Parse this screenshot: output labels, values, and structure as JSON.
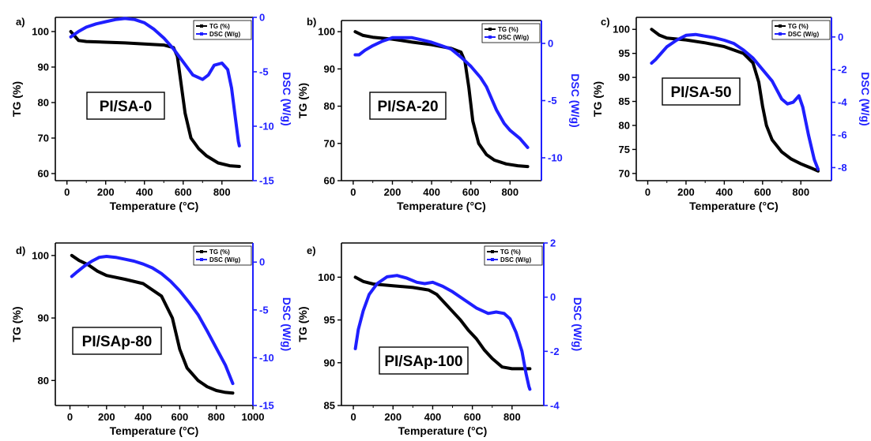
{
  "chart_data": [
    {
      "type": "line",
      "panel": "a)",
      "label": "PI/SA-0",
      "xlabel": "Temperature (°C)",
      "ylabel_left": "TG (%)",
      "ylabel_right": "DSC (W/g)",
      "xlim": [
        -60,
        960
      ],
      "ylim_left": [
        58,
        104
      ],
      "ylim_right": [
        -15,
        0
      ],
      "xticks": [
        0,
        200,
        400,
        600,
        800
      ],
      "yticks_left": [
        60,
        70,
        80,
        90,
        100
      ],
      "yticks_right": [
        -15,
        -10,
        -5,
        0
      ],
      "legend": {
        "position": "top-right",
        "entries": [
          "TG (%)",
          "DSC (W/g)"
        ]
      },
      "series": [
        {
          "name": "TG (%)",
          "axis": "left",
          "color": "#000000",
          "x": [
            20,
            60,
            100,
            200,
            300,
            400,
            500,
            550,
            570,
            590,
            610,
            640,
            680,
            720,
            780,
            840,
            890
          ],
          "y": [
            100,
            97.5,
            97.2,
            97.0,
            96.8,
            96.5,
            96.2,
            95.5,
            93,
            85,
            77,
            70,
            67,
            65,
            63,
            62.2,
            62
          ]
        },
        {
          "name": "DSC (W/g)",
          "axis": "right",
          "color": "#1f1fff",
          "x": [
            20,
            60,
            100,
            150,
            200,
            250,
            300,
            350,
            400,
            450,
            500,
            550,
            600,
            650,
            700,
            730,
            760,
            800,
            830,
            850,
            870,
            885,
            890
          ],
          "y": [
            -1.8,
            -1.3,
            -0.9,
            -0.6,
            -0.4,
            -0.2,
            -0.1,
            -0.2,
            -0.5,
            -1.1,
            -1.9,
            -2.9,
            -4.1,
            -5.3,
            -5.7,
            -5.3,
            -4.4,
            -4.2,
            -4.8,
            -6.5,
            -9.3,
            -11.4,
            -11.8
          ]
        }
      ]
    },
    {
      "type": "line",
      "panel": "b)",
      "label": "PI/SA-20",
      "xlabel": "Temperature (°C)",
      "ylabel_left": "TG (%)",
      "ylabel_right": "DSC (W/g)",
      "xlim": [
        -60,
        960
      ],
      "ylim_left": [
        60,
        103
      ],
      "ylim_right": [
        -12,
        2
      ],
      "xticks": [
        0,
        200,
        400,
        600,
        800
      ],
      "yticks_left": [
        60,
        70,
        80,
        90,
        100
      ],
      "yticks_right": [
        -10,
        -5,
        0
      ],
      "legend": {
        "position": "top-right",
        "entries": [
          "TG (%)",
          "DSC (W/g)"
        ]
      },
      "series": [
        {
          "name": "TG (%)",
          "axis": "left",
          "color": "#000000",
          "x": [
            10,
            50,
            100,
            200,
            300,
            400,
            500,
            550,
            570,
            590,
            610,
            640,
            680,
            720,
            780,
            840,
            890
          ],
          "y": [
            100,
            99.0,
            98.5,
            98.0,
            97.2,
            96.5,
            95.5,
            94.5,
            92,
            85,
            76,
            70,
            67,
            65.5,
            64.5,
            64,
            63.8
          ]
        },
        {
          "name": "DSC (W/g)",
          "axis": "right",
          "color": "#1f1fff",
          "x": [
            10,
            30,
            60,
            100,
            150,
            200,
            250,
            300,
            350,
            400,
            450,
            500,
            550,
            600,
            650,
            680,
            700,
            730,
            770,
            800,
            850,
            890
          ],
          "y": [
            -1.0,
            -1.0,
            -0.6,
            -0.2,
            0.2,
            0.5,
            0.5,
            0.5,
            0.3,
            0.1,
            -0.2,
            -0.5,
            -1.2,
            -2.0,
            -3.0,
            -3.8,
            -4.6,
            -5.8,
            -7.0,
            -7.6,
            -8.3,
            -9.1
          ]
        }
      ]
    },
    {
      "type": "line",
      "panel": "c)",
      "label": "PI/SA-50",
      "xlabel": "Temperature (°C)",
      "ylabel_left": "TG (%)",
      "ylabel_right": "DSC (W/g)",
      "xlim": [
        -60,
        960
      ],
      "ylim_left": [
        68.5,
        102.5
      ],
      "ylim_right": [
        -8.8,
        1.2
      ],
      "xticks": [
        0,
        200,
        400,
        600,
        800
      ],
      "yticks_left": [
        70,
        75,
        80,
        85,
        90,
        95,
        100
      ],
      "yticks_right": [
        -8,
        -6,
        -4,
        -2,
        0
      ],
      "legend": {
        "position": "top-right",
        "entries": [
          "TG (%)",
          "DSC (W/g)"
        ]
      },
      "series": [
        {
          "name": "TG (%)",
          "axis": "left",
          "color": "#000000",
          "x": [
            20,
            60,
            100,
            200,
            300,
            400,
            500,
            550,
            580,
            600,
            620,
            650,
            700,
            750,
            800,
            850,
            890
          ],
          "y": [
            100,
            98.8,
            98.2,
            97.8,
            97.2,
            96.4,
            95.0,
            93.0,
            89,
            84,
            80,
            77,
            74.5,
            73,
            72,
            71.2,
            70.5
          ]
        },
        {
          "name": "DSC (W/g)",
          "axis": "right",
          "color": "#1f1fff",
          "x": [
            20,
            40,
            70,
            100,
            150,
            200,
            250,
            300,
            350,
            400,
            450,
            500,
            550,
            600,
            650,
            700,
            730,
            760,
            790,
            810,
            840,
            870,
            890
          ],
          "y": [
            -1.6,
            -1.4,
            -1.0,
            -0.6,
            -0.2,
            0.1,
            0.15,
            0.05,
            -0.05,
            -0.2,
            -0.4,
            -0.8,
            -1.3,
            -2.0,
            -2.7,
            -3.8,
            -4.1,
            -4.0,
            -3.6,
            -4.3,
            -6.0,
            -7.5,
            -8.1
          ]
        }
      ]
    },
    {
      "type": "line",
      "panel": "d)",
      "label": "PI/SAp-80",
      "xlabel": "Temperature (°C)",
      "ylabel_left": "TG (%)",
      "ylabel_right": "DSC (W/g)",
      "xlim": [
        -80,
        1000
      ],
      "ylim_left": [
        76,
        102
      ],
      "ylim_right": [
        -15,
        2
      ],
      "xticks": [
        0,
        200,
        400,
        600,
        800,
        1000
      ],
      "yticks_left": [
        80,
        90,
        100
      ],
      "yticks_right": [
        -15,
        -10,
        -5,
        0
      ],
      "legend": {
        "position": "top-right",
        "entries": [
          "TG (%)",
          "DSC (W/g)"
        ]
      },
      "series": [
        {
          "name": "TG (%)",
          "axis": "left",
          "color": "#000000",
          "x": [
            10,
            50,
            100,
            150,
            200,
            300,
            400,
            500,
            560,
            600,
            640,
            700,
            750,
            800,
            850,
            890
          ],
          "y": [
            100,
            99.2,
            98.5,
            97.5,
            96.8,
            96.2,
            95.5,
            93.5,
            90,
            85,
            82,
            80,
            79,
            78.4,
            78.1,
            78
          ]
        },
        {
          "name": "DSC (W/g)",
          "axis": "right",
          "color": "#1f1fff",
          "x": [
            10,
            40,
            80,
            120,
            160,
            200,
            250,
            300,
            350,
            400,
            450,
            500,
            550,
            600,
            650,
            700,
            750,
            800,
            850,
            890
          ],
          "y": [
            -1.5,
            -1.0,
            -0.4,
            0.1,
            0.5,
            0.6,
            0.5,
            0.3,
            0.1,
            -0.2,
            -0.6,
            -1.2,
            -2.0,
            -3.0,
            -4.2,
            -5.5,
            -7.2,
            -9.0,
            -10.8,
            -12.7
          ]
        }
      ]
    },
    {
      "type": "line",
      "panel": "e)",
      "label": "PI/SAp-100",
      "xlabel": "Temperature (°C)",
      "ylabel_left": "TG (%)",
      "ylabel_right": "DSC (W/g)",
      "xlim": [
        -60,
        960
      ],
      "ylim_left": [
        85,
        104
      ],
      "ylim_right": [
        -4,
        2
      ],
      "xticks": [
        0,
        200,
        400,
        600,
        800
      ],
      "yticks_left": [
        85,
        90,
        95,
        100
      ],
      "yticks_right": [
        -4,
        -2,
        0,
        2
      ],
      "legend": {
        "position": "top-right",
        "entries": [
          "TG (%)",
          "DSC (W/g)"
        ]
      },
      "series": [
        {
          "name": "TG (%)",
          "axis": "left",
          "color": "#000000",
          "x": [
            10,
            50,
            100,
            200,
            300,
            380,
            420,
            460,
            500,
            540,
            580,
            620,
            660,
            700,
            750,
            800,
            850,
            890
          ],
          "y": [
            100,
            99.5,
            99.2,
            99.0,
            98.8,
            98.5,
            98.0,
            97.0,
            96.0,
            95.0,
            93.8,
            92.8,
            91.5,
            90.5,
            89.5,
            89.3,
            89.3,
            89.3
          ]
        },
        {
          "name": "DSC (W/g)",
          "axis": "right",
          "color": "#1f1fff",
          "x": [
            10,
            25,
            50,
            80,
            120,
            170,
            220,
            270,
            320,
            360,
            400,
            450,
            500,
            560,
            620,
            680,
            720,
            760,
            790,
            820,
            850,
            870,
            885,
            890
          ],
          "y": [
            -1.9,
            -1.2,
            -0.5,
            0.1,
            0.5,
            0.75,
            0.8,
            0.7,
            0.55,
            0.5,
            0.55,
            0.4,
            0.2,
            -0.1,
            -0.4,
            -0.6,
            -0.55,
            -0.6,
            -0.8,
            -1.3,
            -2.0,
            -2.8,
            -3.3,
            -3.4
          ]
        }
      ]
    }
  ]
}
